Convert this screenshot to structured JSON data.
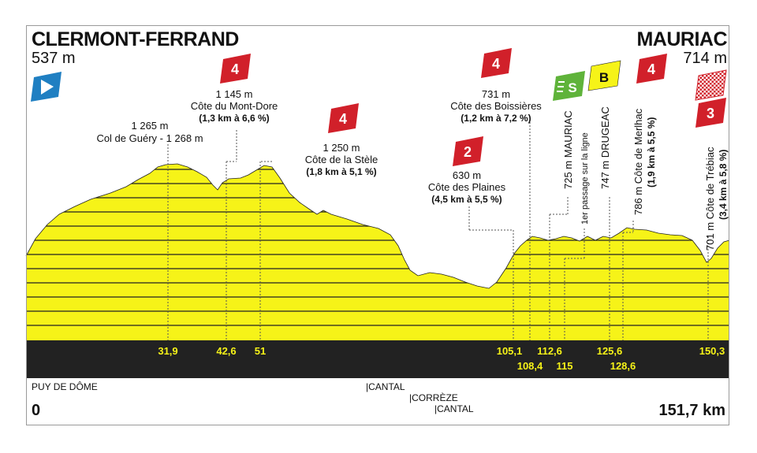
{
  "start": {
    "name": "CLERMONT-FERRAND",
    "altitude": "537 m",
    "distance": "0"
  },
  "finish": {
    "name": "MAURIAC",
    "altitude": "714 m",
    "distance": "151,7 km"
  },
  "colors": {
    "fill": "#f6f318",
    "band": "#222222",
    "cat4": "#d1202a",
    "cat3": "#d1202a",
    "cat2": "#d1202a",
    "sprint": "#5fb33a",
    "bonus": "#f6f318",
    "start_flag": "#1f7fc2"
  },
  "distance_markers": {
    "row1": [
      "31,9",
      "42,6",
      "51",
      "105,1",
      "112,6",
      "125,6",
      "150,3"
    ],
    "row2": [
      "108,4",
      "115",
      "128,6"
    ]
  },
  "climbs": [
    {
      "id": "gueryl",
      "category": "",
      "lines": [
        "1 265 m",
        "Col de Guéry - 1 268 m"
      ]
    },
    {
      "id": "montdore",
      "category": "4",
      "lines": [
        "1 145 m",
        "Côte du Mont-Dore",
        "(1,3 km à 6,6 %)"
      ]
    },
    {
      "id": "stele",
      "category": "4",
      "lines": [
        "1 250 m",
        "Côte de la Stèle",
        "(1,8 km à 5,1 %)"
      ]
    },
    {
      "id": "plaines",
      "category": "2",
      "lines": [
        "630 m",
        "Côte des Plaines",
        "(4,5 km à 5,5 %)"
      ]
    },
    {
      "id": "boissieres",
      "category": "4",
      "lines": [
        "731 m",
        "Côte des Boissières",
        "(1,2 km à 7,2 %)"
      ]
    },
    {
      "id": "merlhac",
      "category": "4",
      "lines": [
        "786 m Côte de Merlhac",
        "(1,9 km à 5,5 %)"
      ]
    },
    {
      "id": "trebiac",
      "category": "3",
      "lines": [
        "701 m Côte de Trébiac",
        "(3,4 km à 5,8 %)"
      ]
    }
  ],
  "vertical_labels": {
    "mauriac": "725 m MAURIAC",
    "passage": "1er passage sur la ligne",
    "drugeac": "747 m DRUGEAC"
  },
  "badges": {
    "sprint": "S",
    "bonus": "B"
  },
  "regions": [
    "PUY DE DÔME",
    "|CANTAL",
    "|CORRÈZE",
    "|CANTAL"
  ]
}
